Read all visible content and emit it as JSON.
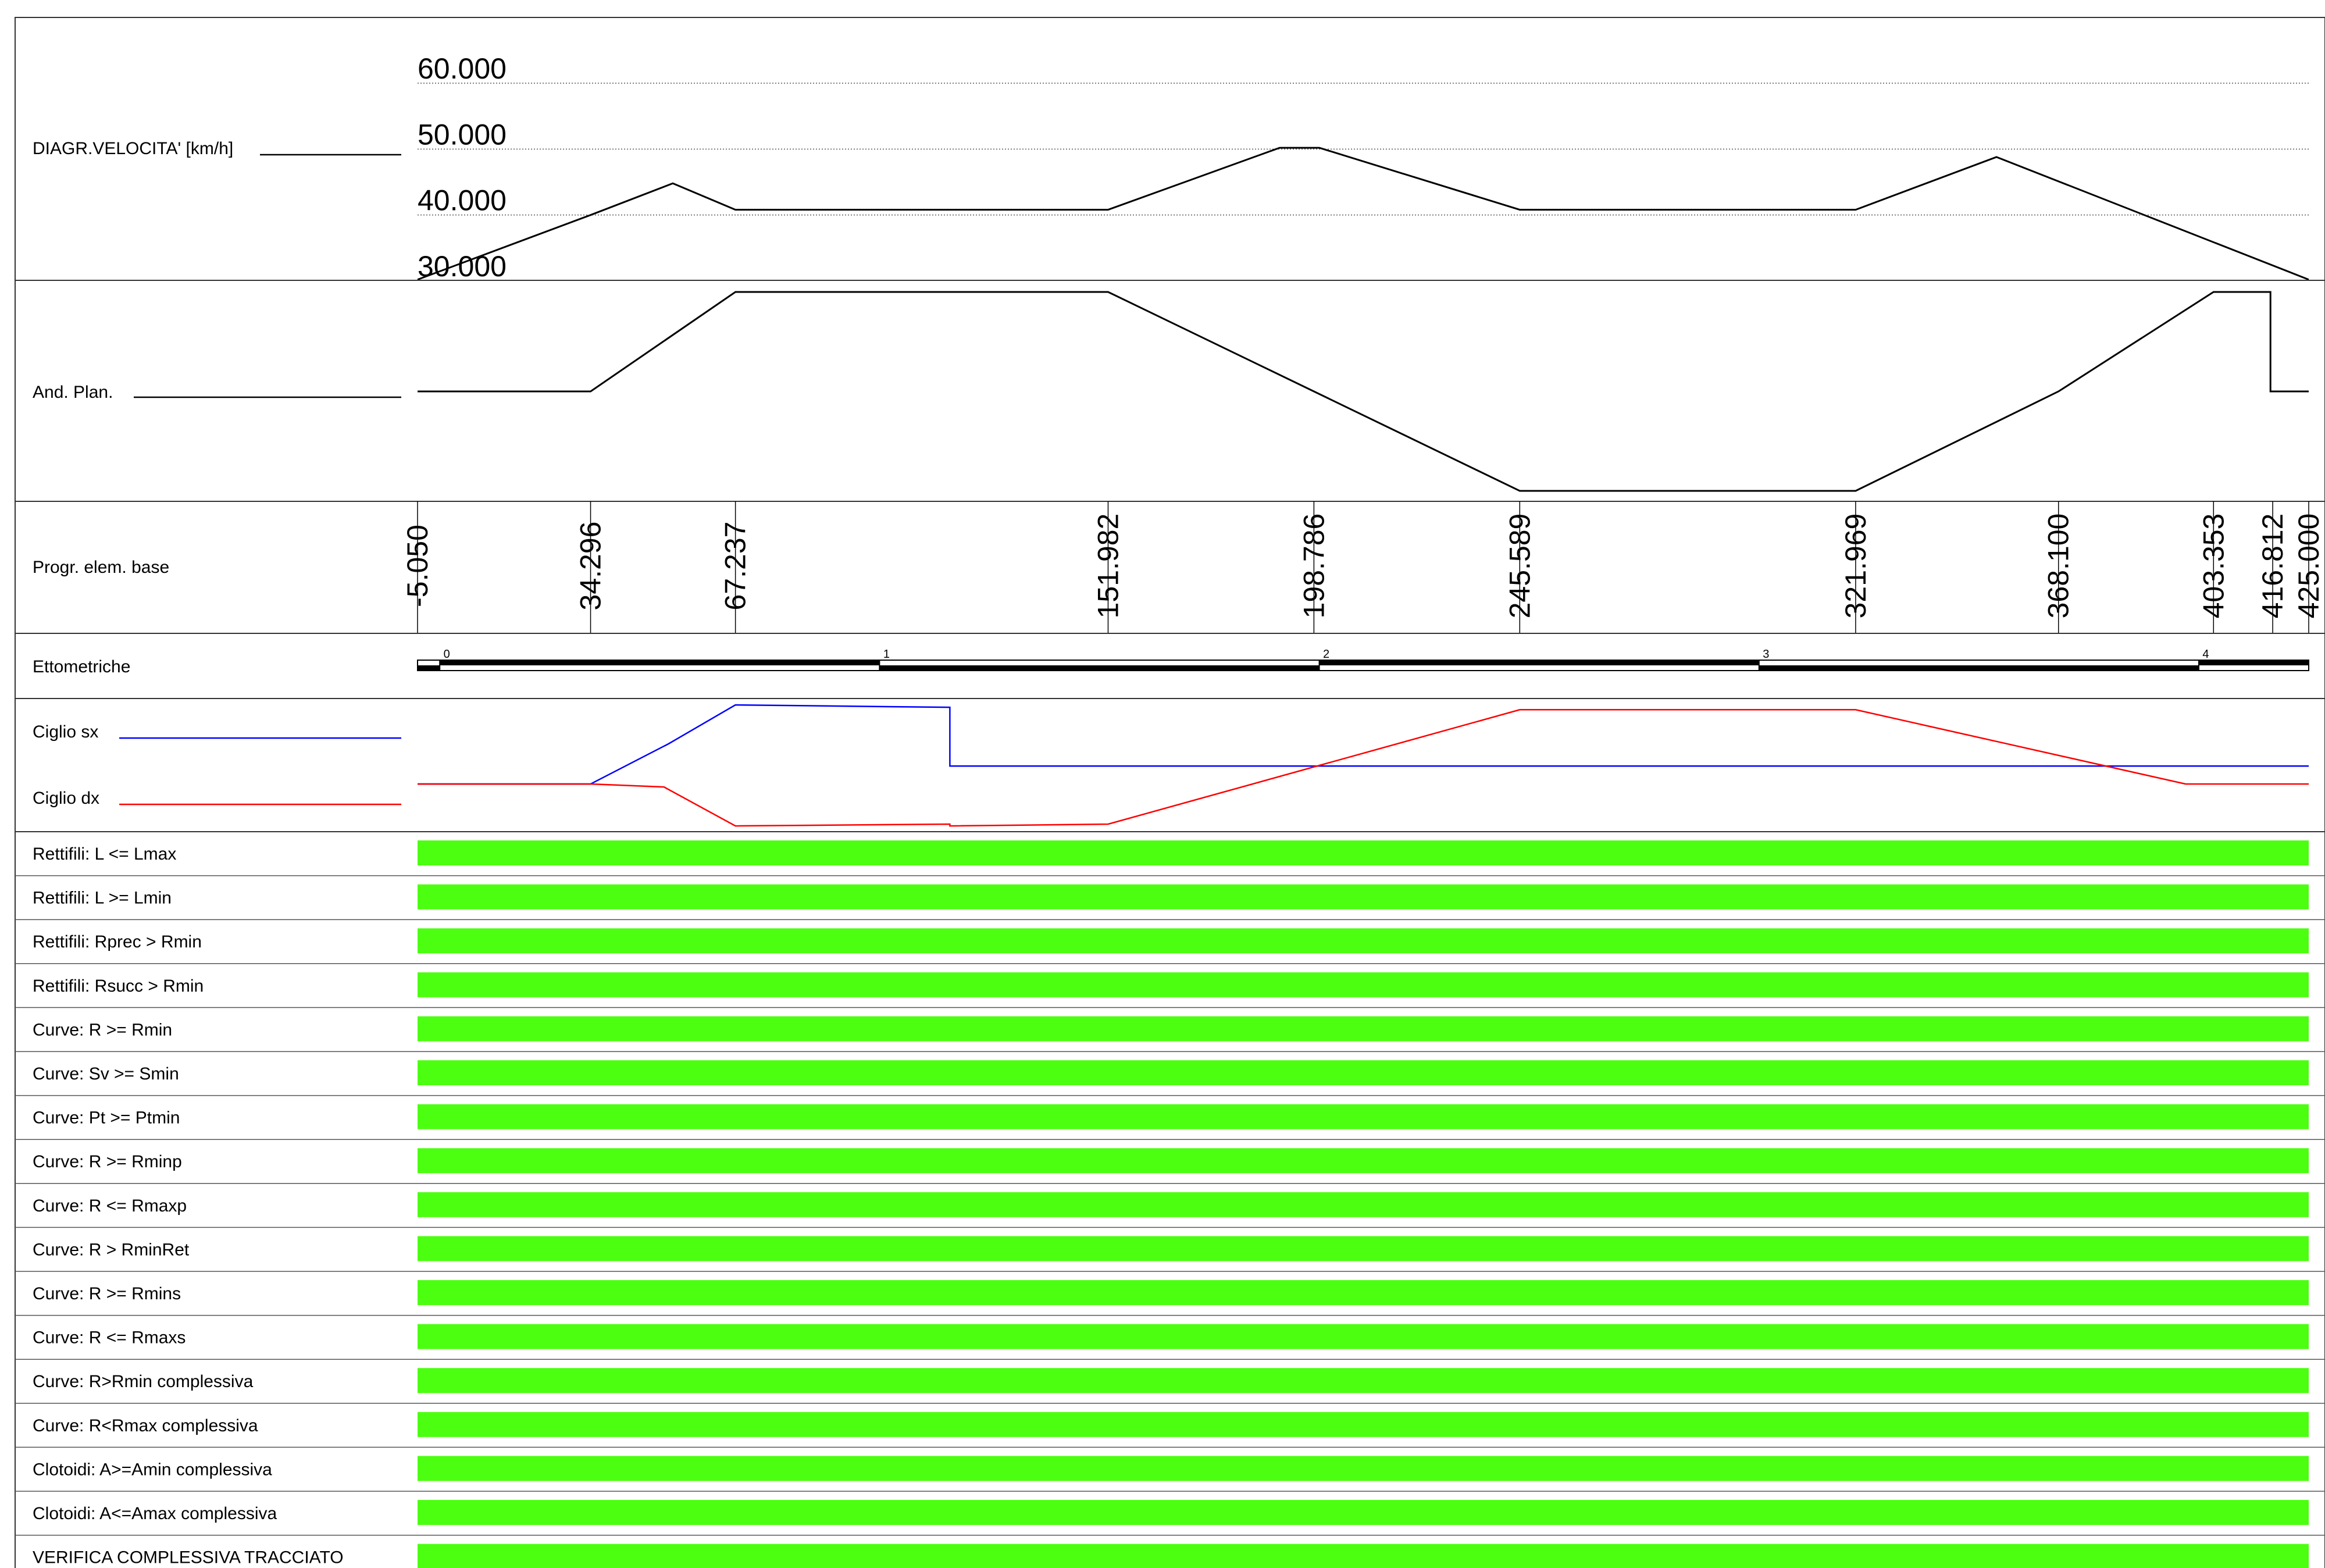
{
  "rows": {
    "velocity": "DIAGR.VELOCITA' [km/h]",
    "plan": "And. Plan.",
    "progr": "Progr. elem. base",
    "ettometriche": "Ettometriche",
    "ciglio_sx": "Ciglio sx",
    "ciglio_dx": "Ciglio dx"
  },
  "colors": {
    "ok": "#4cff10",
    "ciglio_sx": "#0000ff",
    "ciglio_dx": "#ff0000",
    "line": "#000000"
  },
  "chart_data": [
    {
      "type": "line",
      "name": "velocity",
      "title": "DIAGR.VELOCITA' [km/h]",
      "ylim": [
        30,
        60
      ],
      "y_ticks": [
        60,
        50,
        40,
        30
      ],
      "y_tick_labels": [
        "60.000",
        "50.000",
        "40.000",
        "30.000"
      ],
      "xlim": [
        -5.05,
        425.0
      ],
      "x": [
        -5.05,
        34.3,
        53.0,
        67.237,
        151.982,
        191.0,
        200.0,
        245.589,
        321.969,
        354.0,
        425.0
      ],
      "y": [
        30.2,
        40.0,
        44.8,
        40.8,
        40.8,
        50.2,
        50.2,
        40.8,
        40.8,
        48.8,
        30.2
      ]
    },
    {
      "type": "line",
      "name": "plan",
      "title": "And. Plan.",
      "ylim": [
        -1,
        1
      ],
      "xlim": [
        -5.05,
        425.0
      ],
      "x": [
        -5.05,
        34.296,
        67.237,
        151.982,
        198.786,
        245.589,
        321.969,
        368.1,
        403.353,
        416.3,
        416.3,
        425.0
      ],
      "y": [
        0,
        0,
        1,
        1,
        0,
        -1,
        -1,
        0,
        1,
        1,
        0,
        0
      ]
    },
    {
      "type": "table",
      "name": "progressive",
      "title": "Progr. elem. base",
      "x": [
        -5.05,
        34.296,
        67.237,
        151.982,
        198.786,
        245.589,
        321.969,
        368.1,
        403.353,
        416.812,
        425.0
      ],
      "labels": [
        "-5.050",
        "34.296",
        "67.237",
        "151.982",
        "198.786",
        "245.589",
        "321.969",
        "368.100",
        "403.353",
        "416.812",
        "425.000"
      ]
    },
    {
      "type": "bar",
      "name": "ettometriche",
      "title": "Ettometriche",
      "ticks": [
        0,
        1,
        2,
        3,
        4
      ],
      "tick_labels": [
        "0",
        "1",
        "2",
        "3",
        "4"
      ]
    },
    {
      "type": "line",
      "name": "ciglio",
      "xlim": [
        -5.05,
        425.0
      ],
      "ylim": [
        -1,
        1
      ],
      "series": [
        {
          "name": "Ciglio sx",
          "x": [
            -5.05,
            34.3,
            52.0,
            67.237,
            116.0,
            116.0,
            425.0
          ],
          "y": [
            0.0,
            0.0,
            0.67,
            1.32,
            1.28,
            0.3,
            0.3
          ]
        },
        {
          "name": "Ciglio dx",
          "x": [
            -5.05,
            34.3,
            51.0,
            67.237,
            116.0,
            116.0,
            151.982,
            245.589,
            321.969,
            397.0,
            425.0
          ],
          "y": [
            0.0,
            0.0,
            -0.05,
            -0.7,
            -0.67,
            -0.7,
            -0.67,
            1.24,
            1.24,
            0.0,
            0.0
          ]
        }
      ]
    },
    {
      "type": "bar",
      "name": "checks",
      "categories": [
        "Rettifili: L <= Lmax",
        "Rettifili: L >= Lmin",
        "Rettifili: Rprec > Rmin",
        "Rettifili: Rsucc > Rmin",
        "Curve: R  >= Rmin",
        "Curve: Sv >= Smin",
        "Curve: Pt >= Ptmin",
        "Curve: R >= Rminp",
        "Curve: R <= Rmaxp",
        "Curve: R > RminRet",
        "Curve: R >= Rmins",
        "Curve: R <= Rmaxs",
        "Curve: R>Rmin complessiva",
        "Curve: R<Rmax complessiva",
        "Clotoidi: A>=Amin complessiva",
        "Clotoidi: A<=Amax complessiva",
        "VERIFICA COMPLESSIVA TRACCIATO"
      ],
      "values": [
        1,
        1,
        1,
        1,
        1,
        1,
        1,
        1,
        1,
        1,
        1,
        1,
        1,
        1,
        1,
        1,
        1
      ]
    }
  ]
}
